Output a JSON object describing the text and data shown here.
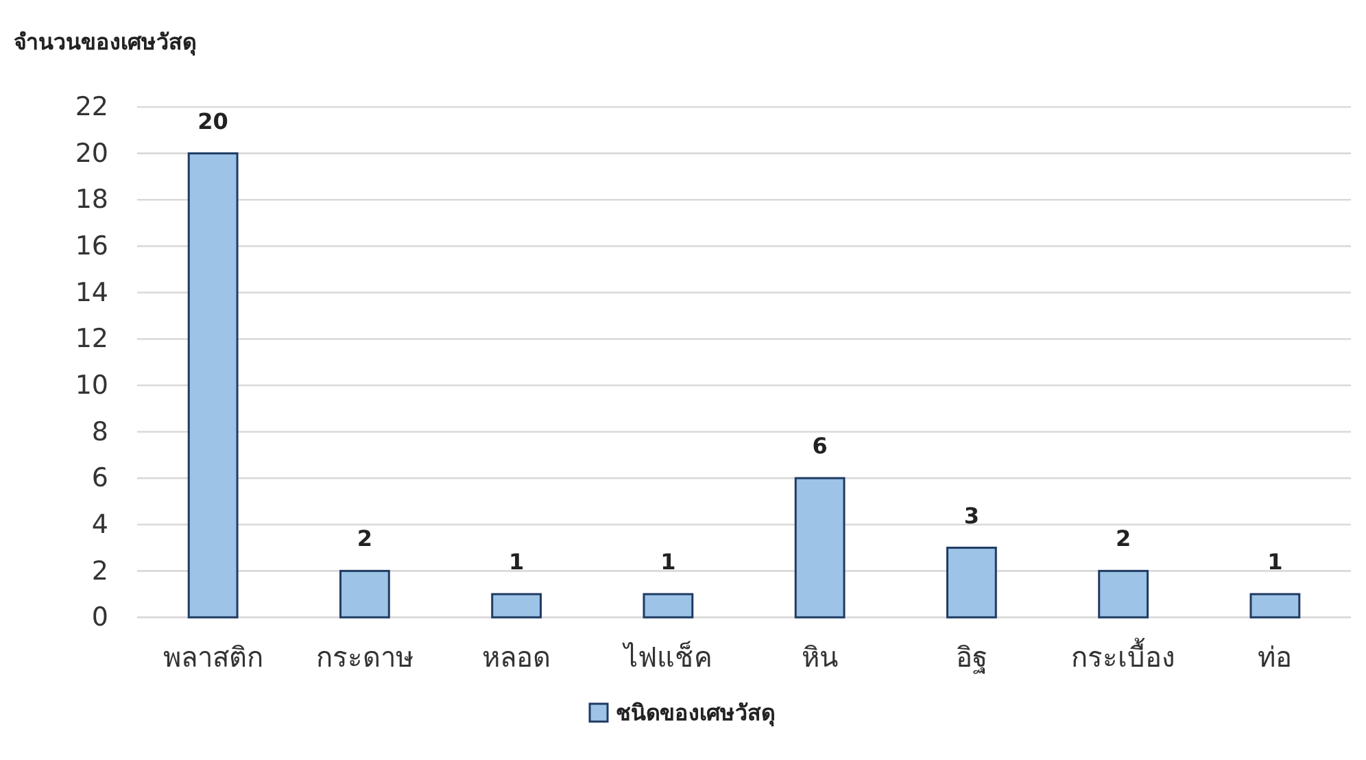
{
  "chart_data": {
    "type": "bar",
    "ylabel": "จำนวนของเศษวัสดุ",
    "categories": [
      "พลาสติก",
      "กระดาษ",
      "หลอด",
      "ไฟแช็ค",
      "หิน",
      "อิฐ",
      "กระเบื้อง",
      "ท่อ"
    ],
    "series": [
      {
        "name": "ชนิดของเศษวัสดุ",
        "color": "#9dc3e6",
        "values": [
          20,
          2,
          1,
          1,
          6,
          3,
          2,
          1
        ]
      }
    ],
    "ylim": [
      0,
      22
    ],
    "yticks": [
      0,
      2,
      4,
      6,
      8,
      10,
      12,
      14,
      16,
      18,
      20,
      22
    ],
    "grid": "y",
    "legend": "bottom",
    "data_labels": true
  }
}
